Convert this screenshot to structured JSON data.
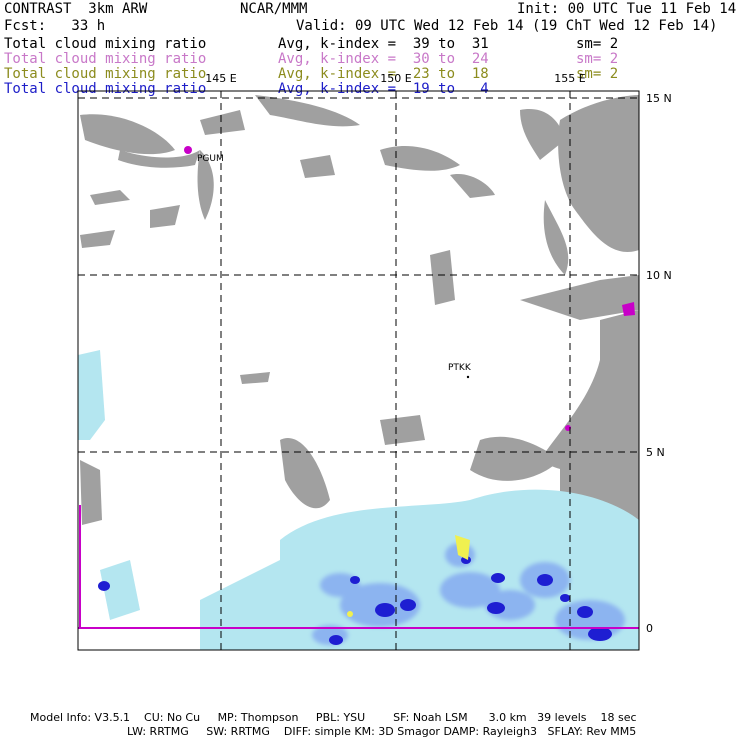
{
  "header": {
    "model_name": "CONTRAST  3km ARW",
    "org": "NCAR/MMM",
    "init": "Init: 00 UTC Tue 11 Feb 14",
    "forecast": "Fcst:   33 h",
    "valid": "Valid: 09 UTC Wed 12 Feb 14 (19 ChT Wed 12 Feb 14)"
  },
  "fields": [
    {
      "name": "Total cloud mixing ratio",
      "range": "Avg, k-index =  39 to  31",
      "smooth": "sm= 2",
      "color": "#000000"
    },
    {
      "name": "Total cloud mixing ratio",
      "range": "Avg, k-index =  30 to  24",
      "smooth": "sm= 2",
      "color": "#c878c8"
    },
    {
      "name": "Total cloud mixing ratio",
      "range": "Avg, k-index =  23 to  18",
      "smooth": "sm= 2",
      "color": "#8c8c1e"
    },
    {
      "name": "Total cloud mixing ratio",
      "range": "Avg, k-index =  19 to   4",
      "smooth": "",
      "color": "#1e1ec8"
    }
  ],
  "map": {
    "lon_labels": [
      "145 E",
      "150 E",
      "155 E"
    ],
    "lat_labels": [
      "15 N",
      "10 N",
      "5 N",
      "0"
    ],
    "stations": [
      "PGUM",
      "PTKK"
    ],
    "colors": {
      "gray_cloud": "#a0a0a0",
      "light_blue": "#b4e6f0",
      "mid_blue": "#8cb4f0",
      "dark_blue": "#1e1ed2",
      "magenta": "#c800c8",
      "yellow": "#f0f050"
    }
  },
  "footer": {
    "line1": "Model Info: V3.5.1    CU: No Cu     MP: Thompson     PBL: YSU        SF: Noah LSM      3.0 km   39 levels    18 sec",
    "line2": "LW: RRTMG     SW: RRTMG    DIFF: simple KM: 3D Smagor DAMP: Rayleigh3   SFLAY: Rev MM5"
  }
}
